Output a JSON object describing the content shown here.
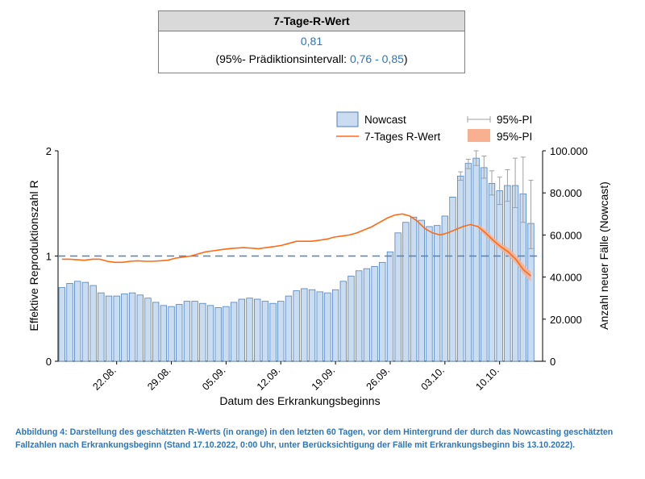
{
  "rbox": {
    "title": "7-Tage-R-Wert",
    "value": "0,81",
    "pi_prefix": "(95%- Prädiktionsintervall: ",
    "pi_range": "0,76 - 0,85",
    "pi_suffix": ")"
  },
  "caption": "Abbildung 4: Darstellung des geschätzten R-Werts (in orange) in den letzten 60 Tagen, vor dem Hintergrund der durch das Nowcasting geschätzten Fallzahlen nach Erkrankungsbeginn (Stand 17.10.2022, 0:00 Uhr, unter Berücksichtigung der Fälle mit Erkrankungsbeginn bis 13.10.2022).",
  "colors": {
    "bar_fill": "#c9dcf0",
    "bar_stroke": "#4f81bd",
    "r_line": "#ff6a13",
    "r_band": "#f8b090",
    "threshold": "#4f81bd",
    "text_blue": "#2e75b6"
  },
  "chart_data": {
    "type": "bar+line",
    "xlabel": "Datum des Erkrankungsbeginns",
    "ylabel_left": "Effektive Reproduktionszahl R",
    "ylabel_right": "Anzahl neuer Fälle (Nowcast)",
    "ylim_left": [
      0,
      2
    ],
    "ylim_right": [
      0,
      100000
    ],
    "left_ticks": [
      "0",
      "1",
      "2"
    ],
    "right_ticks": [
      "0",
      "20.000",
      "40.000",
      "60.000",
      "80.000",
      "100.000"
    ],
    "x_ticks": [
      {
        "label": "22.08.",
        "day": 7
      },
      {
        "label": "29.08.",
        "day": 14
      },
      {
        "label": "05.09.",
        "day": 21
      },
      {
        "label": "12.09.",
        "day": 28
      },
      {
        "label": "19.09.",
        "day": 35
      },
      {
        "label": "26.09.",
        "day": 42
      },
      {
        "label": "03.10.",
        "day": 49
      },
      {
        "label": "10.10.",
        "day": 56
      }
    ],
    "threshold": 1,
    "legend": {
      "position": "top-right",
      "nowcast": "Nowcast",
      "rline": "7-Tages R-Wert",
      "pi_bars": "95%-PI",
      "pi_band": "95%-PI"
    },
    "nowcast": {
      "start_date": "15.08.2022",
      "values": [
        35000,
        37000,
        38000,
        37500,
        36000,
        32500,
        31000,
        31000,
        32000,
        32500,
        31500,
        30000,
        28000,
        26500,
        26000,
        27000,
        28500,
        28500,
        27500,
        26500,
        25500,
        26000,
        28000,
        29500,
        30000,
        29500,
        28500,
        27500,
        28500,
        31000,
        33500,
        34500,
        34000,
        33000,
        32500,
        34000,
        38000,
        40500,
        43000,
        44000,
        45000,
        47000,
        52000,
        61000,
        66000,
        68500,
        67000,
        64000,
        64500,
        69000,
        78000,
        88000,
        94000,
        96500,
        92000,
        84500,
        81000,
        83500,
        83500,
        79500,
        65500
      ],
      "pi_upper": [
        null,
        null,
        null,
        null,
        null,
        null,
        null,
        null,
        null,
        null,
        null,
        null,
        null,
        null,
        null,
        null,
        null,
        null,
        null,
        null,
        null,
        null,
        null,
        null,
        null,
        null,
        null,
        null,
        null,
        null,
        null,
        null,
        null,
        null,
        null,
        null,
        null,
        null,
        null,
        null,
        null,
        null,
        null,
        null,
        null,
        null,
        null,
        null,
        null,
        null,
        null,
        90000,
        96000,
        100000,
        97500,
        90500,
        87500,
        91000,
        96500,
        97000,
        86000
      ],
      "pi_lower": [
        null,
        null,
        null,
        null,
        null,
        null,
        null,
        null,
        null,
        null,
        null,
        null,
        null,
        null,
        null,
        null,
        null,
        null,
        null,
        null,
        null,
        null,
        null,
        null,
        null,
        null,
        null,
        null,
        null,
        null,
        null,
        null,
        null,
        null,
        null,
        null,
        null,
        null,
        null,
        null,
        null,
        null,
        null,
        null,
        null,
        null,
        null,
        null,
        null,
        null,
        null,
        86000,
        91500,
        93000,
        87000,
        79000,
        74500,
        76000,
        73000,
        66000,
        53500
      ]
    },
    "r_line": {
      "start_day": 0,
      "values": [
        0.97,
        0.97,
        0.965,
        0.96,
        0.97,
        0.97,
        0.95,
        0.94,
        0.94,
        0.95,
        0.955,
        0.95,
        0.95,
        0.955,
        0.96,
        0.98,
        0.99,
        1.0,
        1.02,
        1.04,
        1.05,
        1.06,
        1.07,
        1.075,
        1.08,
        1.075,
        1.07,
        1.08,
        1.09,
        1.1,
        1.12,
        1.14,
        1.14,
        1.14,
        1.15,
        1.16,
        1.18,
        1.19,
        1.2,
        1.22,
        1.25,
        1.28,
        1.32,
        1.36,
        1.39,
        1.4,
        1.38,
        1.33,
        1.26,
        1.22,
        1.2,
        1.22,
        1.25,
        1.28,
        1.3,
        1.28,
        1.22,
        1.15,
        1.09,
        1.04,
        0.97,
        0.87,
        0.81
      ],
      "band_upper": [
        null,
        null,
        null,
        null,
        null,
        null,
        null,
        null,
        null,
        null,
        null,
        null,
        null,
        null,
        null,
        null,
        null,
        null,
        null,
        null,
        null,
        null,
        null,
        null,
        null,
        null,
        null,
        null,
        null,
        null,
        null,
        null,
        null,
        null,
        null,
        null,
        null,
        null,
        null,
        null,
        null,
        null,
        null,
        null,
        null,
        null,
        null,
        null,
        null,
        null,
        null,
        null,
        null,
        null,
        null,
        1.3,
        1.25,
        1.18,
        1.12,
        1.08,
        1.01,
        0.92,
        0.85
      ],
      "band_lower": [
        null,
        null,
        null,
        null,
        null,
        null,
        null,
        null,
        null,
        null,
        null,
        null,
        null,
        null,
        null,
        null,
        null,
        null,
        null,
        null,
        null,
        null,
        null,
        null,
        null,
        null,
        null,
        null,
        null,
        null,
        null,
        null,
        null,
        null,
        null,
        null,
        null,
        null,
        null,
        null,
        null,
        null,
        null,
        null,
        null,
        null,
        null,
        null,
        null,
        null,
        null,
        null,
        null,
        null,
        null,
        1.26,
        1.19,
        1.12,
        1.06,
        1.0,
        0.93,
        0.83,
        0.76
      ]
    }
  }
}
